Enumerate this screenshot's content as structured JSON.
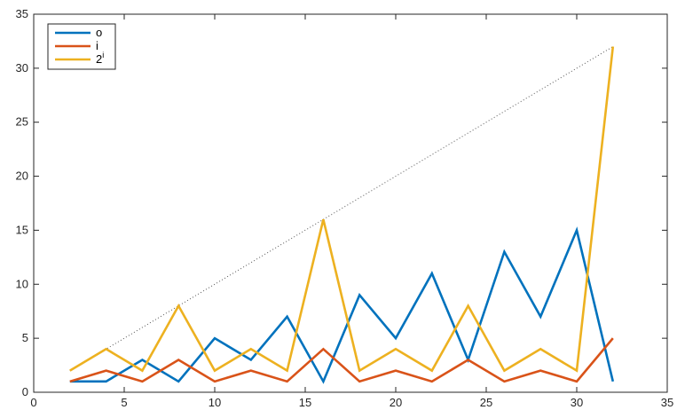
{
  "chart_data": {
    "type": "line",
    "title": "",
    "xlabel": "",
    "ylabel": "",
    "xlim": [
      0,
      35
    ],
    "ylim": [
      0,
      35
    ],
    "x_ticks": [
      0,
      5,
      10,
      15,
      20,
      25,
      30,
      35
    ],
    "y_ticks": [
      0,
      5,
      10,
      15,
      20,
      25,
      30,
      35
    ],
    "x_tick_labels": [
      "0",
      "5",
      "10",
      "15",
      "20",
      "25",
      "30",
      "35"
    ],
    "y_tick_labels": [
      "0",
      "5",
      "10",
      "15",
      "20",
      "25",
      "30",
      "35"
    ],
    "grid": false,
    "legend_position": "top-left",
    "x": [
      2,
      4,
      6,
      8,
      10,
      12,
      14,
      16,
      18,
      20,
      22,
      24,
      26,
      28,
      30,
      32
    ],
    "series": [
      {
        "name": "o",
        "color": "#0072BD",
        "values": [
          1,
          1,
          3,
          1,
          5,
          3,
          7,
          1,
          9,
          5,
          11,
          3,
          13,
          7,
          15,
          1
        ]
      },
      {
        "name": "i",
        "color": "#D95319",
        "values": [
          1,
          2,
          1,
          3,
          1,
          2,
          1,
          4,
          1,
          2,
          1,
          3,
          1,
          2,
          1,
          5
        ]
      },
      {
        "name": "2",
        "name_superscript": "i",
        "color": "#EDB120",
        "values": [
          2,
          4,
          2,
          8,
          2,
          4,
          2,
          16,
          2,
          4,
          2,
          8,
          2,
          4,
          2,
          32
        ]
      }
    ],
    "reference_line": {
      "style": "dotted",
      "color": "#555555",
      "x": [
        2,
        32
      ],
      "y": [
        2,
        32
      ]
    }
  }
}
